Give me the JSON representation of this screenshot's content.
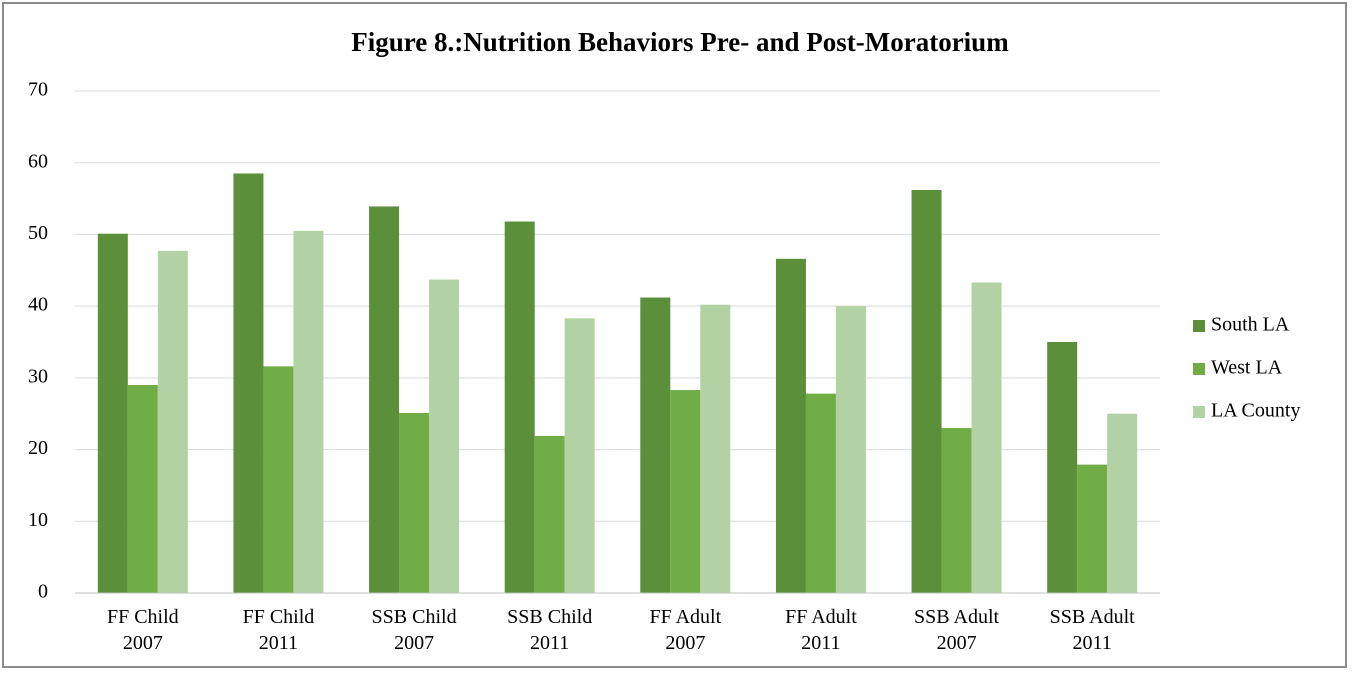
{
  "chart_data": {
    "type": "bar",
    "title": "Figure 8.:Nutrition Behaviors Pre- and Post-Moratorium",
    "categories": [
      [
        "FF Child",
        "2007"
      ],
      [
        "FF Child",
        "2011"
      ],
      [
        "SSB Child",
        "2007"
      ],
      [
        "SSB Child",
        "2011"
      ],
      [
        "FF Adult",
        "2007"
      ],
      [
        "FF Adult",
        "2011"
      ],
      [
        "SSB Adult",
        "2007"
      ],
      [
        "SSB Adult",
        "2011"
      ]
    ],
    "series": [
      {
        "name": "South LA",
        "color": "#5b8f3a",
        "values": [
          50.1,
          58.5,
          53.9,
          51.8,
          41.2,
          46.6,
          56.2,
          35.0
        ]
      },
      {
        "name": "West LA",
        "color": "#70ad47",
        "values": [
          29.0,
          31.6,
          25.1,
          21.9,
          28.3,
          27.8,
          23.0,
          17.9
        ]
      },
      {
        "name": "LA County",
        "color": "#b3d2a4",
        "values": [
          47.7,
          50.5,
          43.7,
          38.3,
          40.2,
          40.0,
          43.3,
          25.0
        ]
      }
    ],
    "ylim": [
      0,
      70
    ],
    "yticks": [
      0,
      10,
      20,
      30,
      40,
      50,
      60,
      70
    ],
    "grid": true,
    "legend": "right"
  }
}
